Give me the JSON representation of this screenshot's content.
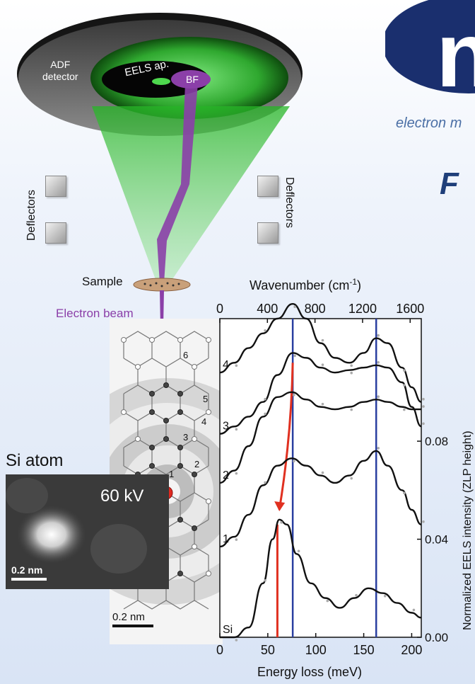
{
  "brand": {
    "tagline": "electron m",
    "logo_letter": "n",
    "title_fragment": "F"
  },
  "detector": {
    "adf_label_line1": "ADF",
    "adf_label_line2": "detector",
    "eels_aperture_label": "EELS ap.",
    "bf_label": "BF"
  },
  "deflectors": {
    "left_label": "Deflectors",
    "right_label": "Deflectors"
  },
  "sample_label": "Sample",
  "electron_beam_label": "Electron beam",
  "si_image": {
    "title": "Si atom",
    "voltage": "60 kV",
    "scalebar": "0.2 nm"
  },
  "lattice": {
    "si_label": "Si",
    "shell_numbers": [
      "1",
      "2",
      "3",
      "4",
      "5",
      "6"
    ],
    "scalebar": "0.2 nm"
  },
  "colors": {
    "beam": "#8b3fa8",
    "green": "#3fc83f",
    "navy": "#1a2f6e",
    "arrow": "#e03020",
    "marker_blue": "#2a3fa0"
  },
  "chart_data": {
    "type": "line",
    "title": "",
    "xlabel": "Energy loss (meV)",
    "xlabel_top": "Wavenumber (cm",
    "xlabel_top_sup": "-1",
    "xlabel_top_end": ")",
    "ylabel": "Normalized EELS intensity (ZLP height)",
    "xlim": [
      0,
      210
    ],
    "ylim": [
      0.0,
      0.13
    ],
    "x_ticks": [
      "0",
      "50",
      "100",
      "150",
      "200"
    ],
    "top_ticks": [
      "0",
      "400",
      "800",
      "1200",
      "1600"
    ],
    "y_ticks": [
      "0.00",
      "0.04",
      "0.08"
    ],
    "vertical_markers": [
      76,
      163
    ],
    "si_peak_marker": 60,
    "series": [
      {
        "name": "Si",
        "x": [
          0,
          15,
          30,
          45,
          55,
          62,
          70,
          80,
          95,
          110,
          125,
          140,
          155,
          170,
          185,
          200,
          210
        ],
        "y": [
          0.0,
          0.0,
          0.004,
          0.022,
          0.04,
          0.048,
          0.046,
          0.034,
          0.022,
          0.016,
          0.012,
          0.016,
          0.02,
          0.018,
          0.014,
          0.01,
          0.008
        ]
      },
      {
        "name": "1",
        "x": [
          0,
          15,
          30,
          45,
          60,
          75,
          90,
          105,
          120,
          135,
          150,
          163,
          175,
          190,
          200,
          210
        ],
        "y": [
          0.037,
          0.041,
          0.05,
          0.062,
          0.07,
          0.073,
          0.07,
          0.066,
          0.063,
          0.066,
          0.072,
          0.076,
          0.07,
          0.06,
          0.052,
          0.046
        ]
      },
      {
        "name": "2",
        "x": [
          0,
          15,
          30,
          45,
          60,
          75,
          90,
          105,
          120,
          135,
          150,
          163,
          175,
          190,
          200,
          210
        ],
        "y": [
          0.063,
          0.068,
          0.078,
          0.09,
          0.098,
          0.1,
          0.097,
          0.094,
          0.093,
          0.094,
          0.096,
          0.097,
          0.096,
          0.094,
          0.093,
          0.093
        ]
      },
      {
        "name": "3",
        "x": [
          0,
          15,
          30,
          45,
          60,
          76,
          90,
          105,
          120,
          135,
          150,
          163,
          175,
          190,
          200,
          210
        ],
        "y": [
          0.083,
          0.086,
          0.09,
          0.096,
          0.107,
          0.116,
          0.114,
          0.11,
          0.108,
          0.109,
          0.11,
          0.111,
          0.11,
          0.104,
          0.094,
          0.086
        ]
      },
      {
        "name": "4",
        "x": [
          0,
          15,
          30,
          45,
          60,
          76,
          90,
          105,
          120,
          135,
          150,
          163,
          175,
          190,
          200,
          210
        ],
        "y": [
          0.108,
          0.112,
          0.118,
          0.124,
          0.13,
          0.136,
          0.13,
          0.12,
          0.114,
          0.112,
          0.116,
          0.122,
          0.12,
          0.11,
          0.102,
          0.096
        ]
      }
    ]
  }
}
